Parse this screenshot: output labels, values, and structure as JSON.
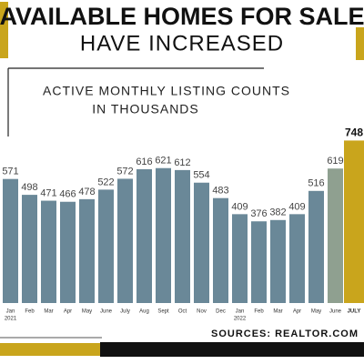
{
  "chart_data": {
    "type": "bar",
    "title": "AVAILABLE HOMES FOR SALE",
    "subtitle": "HAVE INCREASED",
    "chart_title_lines": [
      "ACTIVE MONTHLY LISTING COUNTS",
      "IN THOUSANDS"
    ],
    "categories": [
      "Jan",
      "Feb",
      "Mar",
      "Apr",
      "May",
      "June",
      "July",
      "Aug",
      "Sept",
      "Oct",
      "Nov",
      "Dec",
      "Jan",
      "Feb",
      "Mar",
      "Apr",
      "May",
      "June",
      "JULY"
    ],
    "years": [
      "2021",
      null,
      null,
      null,
      null,
      null,
      null,
      null,
      null,
      null,
      null,
      null,
      "2022",
      null,
      null,
      null,
      null,
      null,
      null
    ],
    "values": [
      571,
      498,
      471,
      466,
      478,
      522,
      572,
      616,
      621,
      612,
      554,
      483,
      409,
      376,
      382,
      409,
      516,
      619,
      748
    ],
    "colors": [
      "#6a8898",
      "#6a8898",
      "#6a8898",
      "#6a8898",
      "#6a8898",
      "#6a8898",
      "#6a8898",
      "#6a8898",
      "#6a8898",
      "#6a8898",
      "#6a8898",
      "#6a8898",
      "#6a8898",
      "#6a8898",
      "#6a8898",
      "#6a8898",
      "#6a8898",
      "#8fa090",
      "#c9a51c"
    ],
    "ylim": [
      0,
      800
    ],
    "source": "SOURCES: REALTOR.COM"
  }
}
